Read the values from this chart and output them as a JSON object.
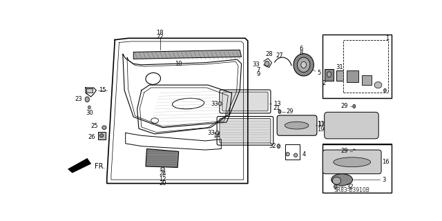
{
  "bg_color": "#ffffff",
  "line_color": "#000000",
  "diagram_code": "SR83-B3910B",
  "fig_width": 6.4,
  "fig_height": 3.2,
  "dpi": 100
}
